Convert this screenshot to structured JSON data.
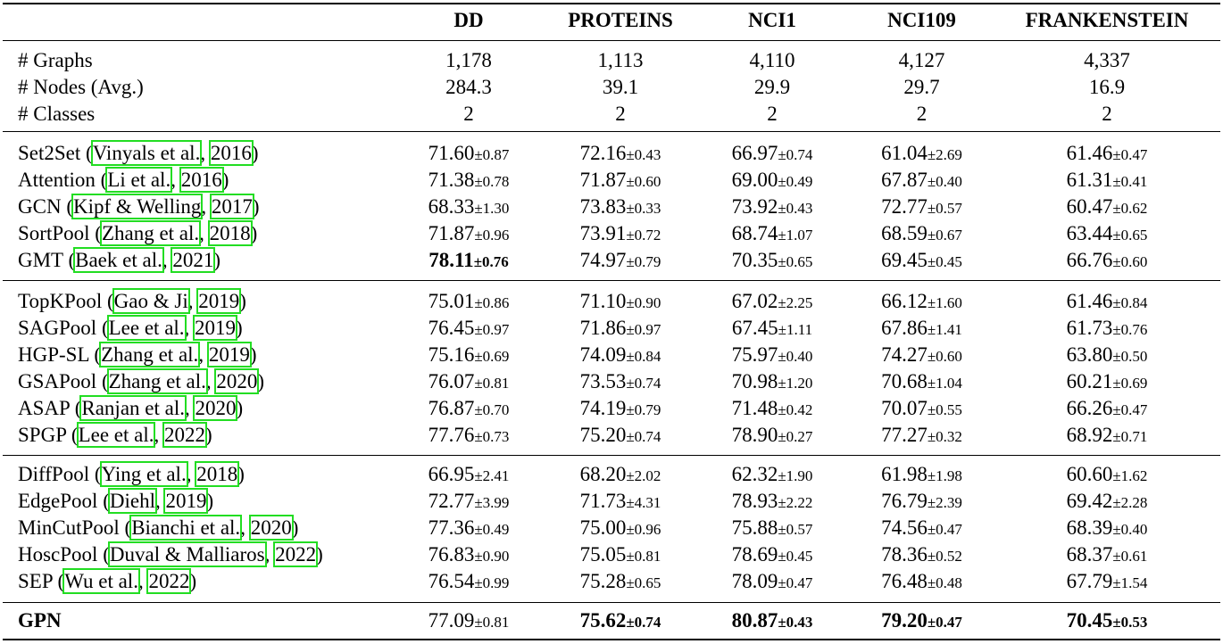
{
  "header": {
    "columns": [
      "DD",
      "PROTEINS",
      "NCI1",
      "NCI109",
      "FRANKENSTEIN"
    ]
  },
  "stats": [
    {
      "label": "# Graphs",
      "values": [
        "1,178",
        "1,113",
        "4,110",
        "4,127",
        "4,337"
      ]
    },
    {
      "label": "# Nodes (Avg.)",
      "values": [
        "284.3",
        "39.1",
        "29.9",
        "29.7",
        "16.9"
      ]
    },
    {
      "label": "# Classes",
      "values": [
        "2",
        "2",
        "2",
        "2",
        "2"
      ]
    }
  ],
  "groups": [
    [
      {
        "name": "Set2Set",
        "cite_authors": "Vinyals et al.",
        "cite_year": "2016",
        "results": [
          [
            "71.60",
            "±0.87"
          ],
          [
            "72.16",
            "±0.43"
          ],
          [
            "66.97",
            "±0.74"
          ],
          [
            "61.04",
            "±2.69"
          ],
          [
            "61.46",
            "±0.47"
          ]
        ]
      },
      {
        "name": "Attention",
        "cite_authors": "Li et al.",
        "cite_year": "2016",
        "results": [
          [
            "71.38",
            "±0.78"
          ],
          [
            "71.87",
            "±0.60"
          ],
          [
            "69.00",
            "±0.49"
          ],
          [
            "67.87",
            "±0.40"
          ],
          [
            "61.31",
            "±0.41"
          ]
        ]
      },
      {
        "name": "GCN",
        "cite_authors": "Kipf & Welling",
        "cite_year": "2017",
        "results": [
          [
            "68.33",
            "±1.30"
          ],
          [
            "73.83",
            "±0.33"
          ],
          [
            "73.92",
            "±0.43"
          ],
          [
            "72.77",
            "±0.57"
          ],
          [
            "60.47",
            "±0.62"
          ]
        ]
      },
      {
        "name": "SortPool",
        "cite_authors": "Zhang et al.",
        "cite_year": "2018",
        "results": [
          [
            "71.87",
            "±0.96"
          ],
          [
            "73.91",
            "±0.72"
          ],
          [
            "68.74",
            "±1.07"
          ],
          [
            "68.59",
            "±0.67"
          ],
          [
            "63.44",
            "±0.65"
          ]
        ]
      },
      {
        "name": "GMT",
        "cite_authors": "Baek et al.",
        "cite_year": "2021",
        "results": [
          [
            "78.11",
            "±0.76"
          ],
          [
            "74.97",
            "±0.79"
          ],
          [
            "70.35",
            "±0.65"
          ],
          [
            "69.45",
            "±0.45"
          ],
          [
            "66.76",
            "±0.60"
          ]
        ],
        "bold": [
          true,
          false,
          false,
          false,
          false
        ]
      }
    ],
    [
      {
        "name": "TopKPool",
        "cite_authors": "Gao & Ji",
        "cite_year": "2019",
        "results": [
          [
            "75.01",
            "±0.86"
          ],
          [
            "71.10",
            "±0.90"
          ],
          [
            "67.02",
            "±2.25"
          ],
          [
            "66.12",
            "±1.60"
          ],
          [
            "61.46",
            "±0.84"
          ]
        ]
      },
      {
        "name": "SAGPool",
        "cite_authors": "Lee et al.",
        "cite_year": "2019",
        "results": [
          [
            "76.45",
            "±0.97"
          ],
          [
            "71.86",
            "±0.97"
          ],
          [
            "67.45",
            "±1.11"
          ],
          [
            "67.86",
            "±1.41"
          ],
          [
            "61.73",
            "±0.76"
          ]
        ]
      },
      {
        "name": "HGP-SL",
        "cite_authors": "Zhang et al.",
        "cite_year": "2019",
        "results": [
          [
            "75.16",
            "±0.69"
          ],
          [
            "74.09",
            "±0.84"
          ],
          [
            "75.97",
            "±0.40"
          ],
          [
            "74.27",
            "±0.60"
          ],
          [
            "63.80",
            "±0.50"
          ]
        ]
      },
      {
        "name": "GSAPool",
        "cite_authors": "Zhang et al.",
        "cite_year": "2020",
        "results": [
          [
            "76.07",
            "±0.81"
          ],
          [
            "73.53",
            "±0.74"
          ],
          [
            "70.98",
            "±1.20"
          ],
          [
            "70.68",
            "±1.04"
          ],
          [
            "60.21",
            "±0.69"
          ]
        ]
      },
      {
        "name": "ASAP",
        "cite_authors": "Ranjan et al.",
        "cite_year": "2020",
        "results": [
          [
            "76.87",
            "±0.70"
          ],
          [
            "74.19",
            "±0.79"
          ],
          [
            "71.48",
            "±0.42"
          ],
          [
            "70.07",
            "±0.55"
          ],
          [
            "66.26",
            "±0.47"
          ]
        ]
      },
      {
        "name": "SPGP",
        "cite_authors": "Lee et al.",
        "cite_year": "2022",
        "results": [
          [
            "77.76",
            "±0.73"
          ],
          [
            "75.20",
            "±0.74"
          ],
          [
            "78.90",
            "±0.27"
          ],
          [
            "77.27",
            "±0.32"
          ],
          [
            "68.92",
            "±0.71"
          ]
        ]
      }
    ],
    [
      {
        "name": "DiffPool",
        "cite_authors": "Ying et al.",
        "cite_year": "2018",
        "results": [
          [
            "66.95",
            "±2.41"
          ],
          [
            "68.20",
            "±2.02"
          ],
          [
            "62.32",
            "±1.90"
          ],
          [
            "61.98",
            "±1.98"
          ],
          [
            "60.60",
            "±1.62"
          ]
        ]
      },
      {
        "name": "EdgePool",
        "cite_authors": "Diehl",
        "cite_year": "2019",
        "results": [
          [
            "72.77",
            "±3.99"
          ],
          [
            "71.73",
            "±4.31"
          ],
          [
            "78.93",
            "±2.22"
          ],
          [
            "76.79",
            "±2.39"
          ],
          [
            "69.42",
            "±2.28"
          ]
        ]
      },
      {
        "name": "MinCutPool",
        "cite_authors": "Bianchi et al.",
        "cite_year": "2020",
        "results": [
          [
            "77.36",
            "±0.49"
          ],
          [
            "75.00",
            "±0.96"
          ],
          [
            "75.88",
            "±0.57"
          ],
          [
            "74.56",
            "±0.47"
          ],
          [
            "68.39",
            "±0.40"
          ]
        ]
      },
      {
        "name": "HoscPool",
        "cite_authors": "Duval & Malliaros",
        "cite_year": "2022",
        "results": [
          [
            "76.83",
            "±0.90"
          ],
          [
            "75.05",
            "±0.81"
          ],
          [
            "78.69",
            "±0.45"
          ],
          [
            "78.36",
            "±0.52"
          ],
          [
            "68.37",
            "±0.61"
          ]
        ]
      },
      {
        "name": "SEP",
        "cite_authors": "Wu et al.",
        "cite_year": "2022",
        "results": [
          [
            "76.54",
            "±0.99"
          ],
          [
            "75.28",
            "±0.65"
          ],
          [
            "78.09",
            "±0.47"
          ],
          [
            "76.48",
            "±0.48"
          ],
          [
            "67.79",
            "±1.54"
          ]
        ]
      }
    ]
  ],
  "ours": {
    "name": "GPN",
    "results": [
      [
        "77.09",
        "±0.81"
      ],
      [
        "75.62",
        "±0.74"
      ],
      [
        "80.87",
        "±0.43"
      ],
      [
        "79.20",
        "±0.47"
      ],
      [
        "70.45",
        "±0.53"
      ]
    ],
    "bold": [
      false,
      true,
      true,
      true,
      true
    ]
  }
}
